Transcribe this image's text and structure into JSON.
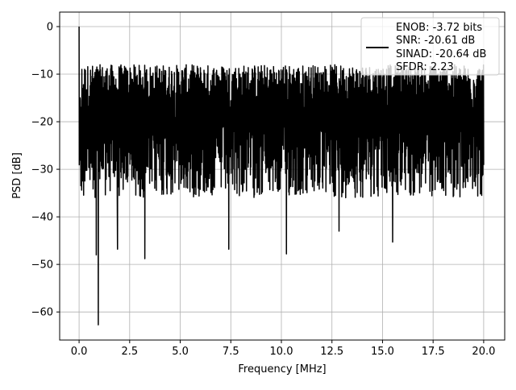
{
  "chart_data": {
    "type": "line",
    "title": "",
    "xlabel": "Frequency [MHz]",
    "ylabel": "PSD [dB]",
    "xlim": [
      -0.96,
      21.04
    ],
    "ylim": [
      -65.9,
      3.05
    ],
    "xticks": [
      0,
      2.5,
      5,
      7.5,
      10,
      12.5,
      15,
      17.5,
      20
    ],
    "xtick_labels": [
      "0.0",
      "2.5",
      "5.0",
      "7.5",
      "10.0",
      "12.5",
      "15.0",
      "17.5",
      "20.0"
    ],
    "yticks": [
      0,
      -10,
      -20,
      -30,
      -40,
      -50,
      -60
    ],
    "ytick_labels": [
      "0",
      "−10",
      "−20",
      "−30",
      "−40",
      "−50",
      "−60"
    ],
    "grid": true,
    "legend_position": "top-right",
    "legend": [
      "ENOB: -3.72 bits",
      "SNR: -20.61 dB",
      "SINAD: -20.64 dB",
      "SFDR: 2.23"
    ],
    "series": [
      {
        "name": "PSD",
        "color": "#000000",
        "x_range": [
          0,
          20
        ],
        "n_points": 2048,
        "noise_model": {
          "mean_db": -20.5,
          "upper_db": -8,
          "lower_db": -36
        },
        "notable_points": [
          {
            "x": 0.0,
            "y": 0.0
          },
          {
            "x": 0.05,
            "y": -15
          },
          {
            "x": 0.95,
            "y": -62.7
          },
          {
            "x": 0.85,
            "y": -48
          },
          {
            "x": 1.9,
            "y": -46.8
          },
          {
            "x": 3.25,
            "y": -48.8
          },
          {
            "x": 7.4,
            "y": -46.8
          },
          {
            "x": 10.25,
            "y": -47.8
          },
          {
            "x": 12.85,
            "y": -43
          },
          {
            "x": 15.5,
            "y": -45.3
          }
        ]
      }
    ]
  }
}
